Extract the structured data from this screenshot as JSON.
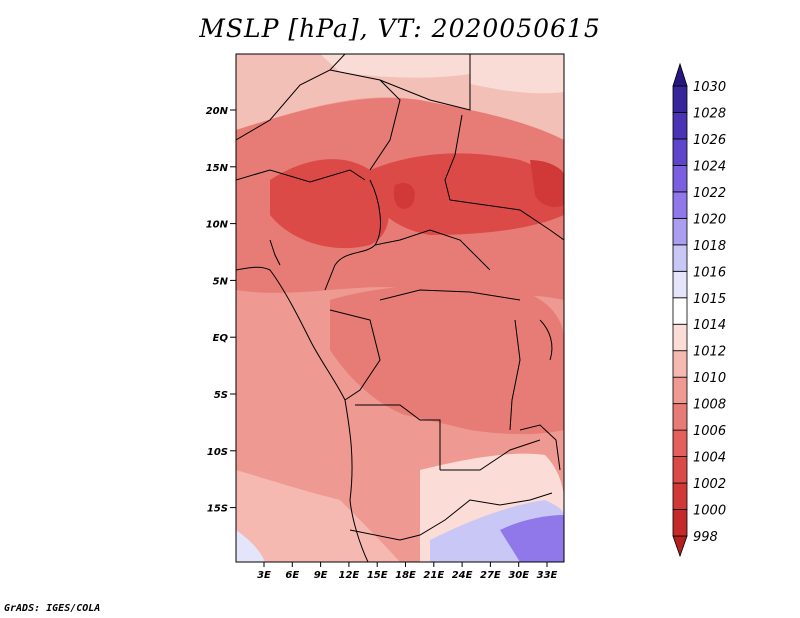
{
  "title": "MSLP [hPa], VT: 2020050615",
  "credit": "GrADS: IGES/COLA",
  "lat_labels": [
    "20N",
    "15N",
    "10N",
    "5N",
    "EQ",
    "5S",
    "10S",
    "15S"
  ],
  "lon_labels": [
    "3E",
    "6E",
    "9E",
    "12E",
    "15E",
    "18E",
    "21E",
    "24E",
    "27E",
    "30E",
    "33E"
  ],
  "colorbar": {
    "levels": [
      "998",
      "1000",
      "1002",
      "1004",
      "1006",
      "1008",
      "1010",
      "1012",
      "1014",
      "1015",
      "1016",
      "1018",
      "1020",
      "1022",
      "1024",
      "1026",
      "1028",
      "1030"
    ],
    "colors": [
      "#b51f1f",
      "#c42a2a",
      "#d13939",
      "#dc4a48",
      "#e4605c",
      "#e77c76",
      "#ee9a92",
      "#f6b9b1",
      "#fcdcd6",
      "#ffffff",
      "#e4e4fb",
      "#c9c7f6",
      "#ab9ef0",
      "#9078ea",
      "#7a5fe0",
      "#5f45cc",
      "#4a33b4",
      "#36259b",
      "#26177f"
    ]
  },
  "regions": {
    "sahara-north": "#f3c0b8",
    "libya-top": "#fadcd6",
    "sahel-band": "#e77c76",
    "chad-low": "#dc4a48",
    "sudan-low": "#d13939",
    "nigeria-low": "#dc4a48",
    "gulf-guinea": "#ee9a92",
    "congo-basin": "#e77c76",
    "angola": "#ee9a92",
    "namibia-coast": "#f6b9b1",
    "zambia": "#fcdcd6",
    "south-tip": "#c9c7f6",
    "south-deep": "#9078ea",
    "sw-corner": "#e4e4fb"
  }
}
